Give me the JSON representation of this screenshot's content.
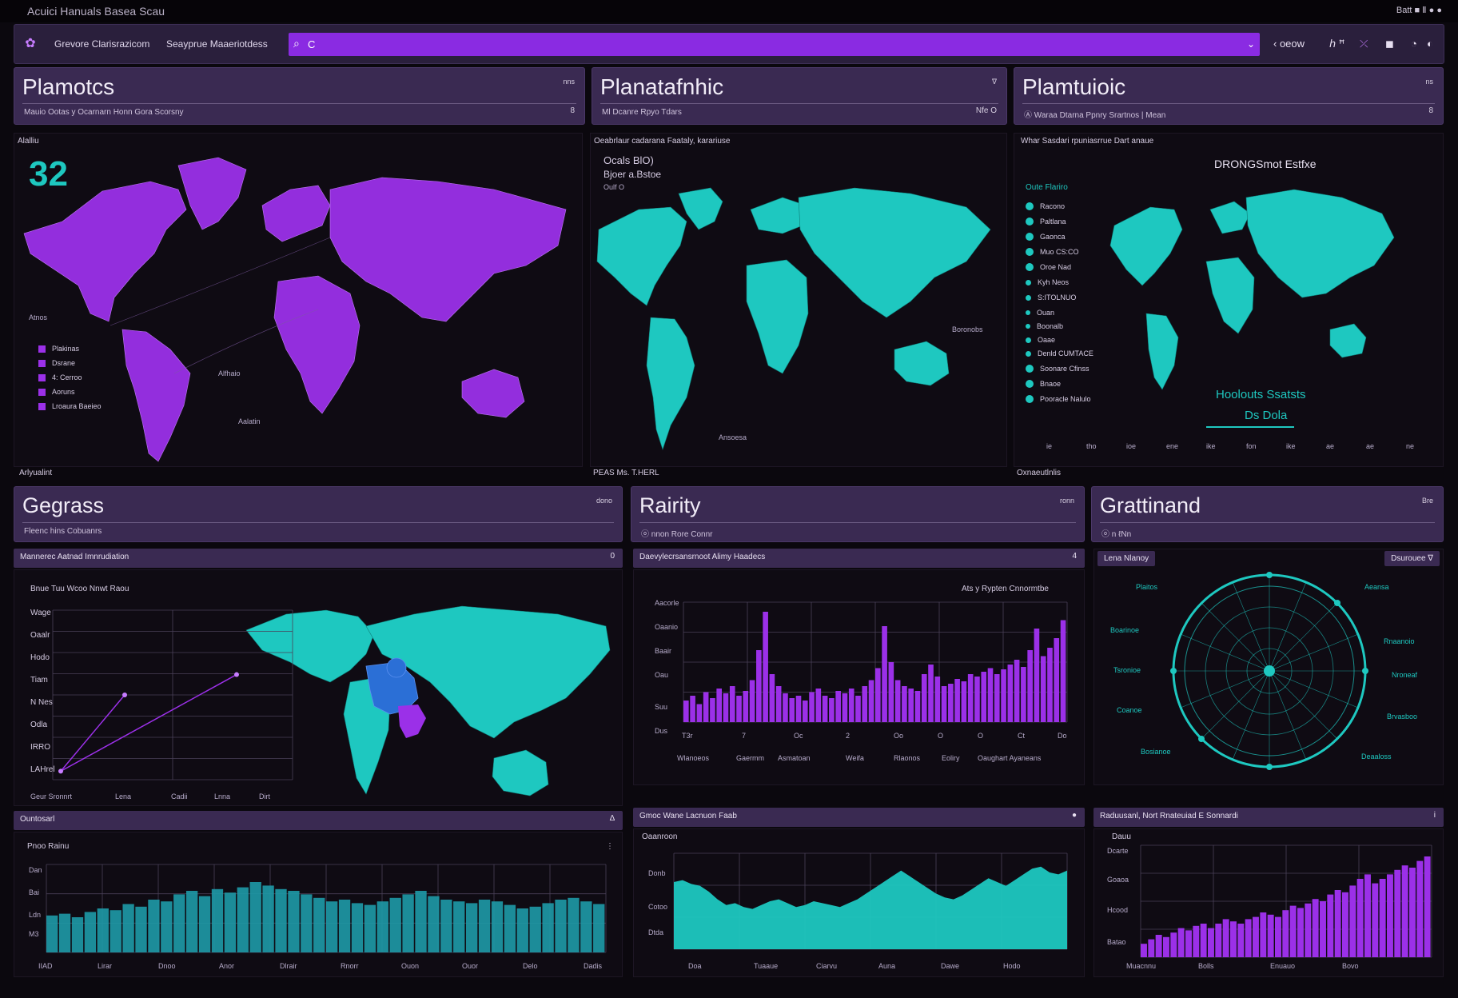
{
  "os": {
    "title": "Acuici Hanuals Basea Scau",
    "tray": "Batt ■ Ⅱ ● ●"
  },
  "app_bar": {
    "app_name": "Grevore Clarisrazicom",
    "app_sub": "Seayprue Maaeriotdess",
    "search_value": "C",
    "actions": [
      "‹ oeow",
      "ℎ ꟸ",
      "⤫",
      "◼",
      "◔",
      "◐"
    ]
  },
  "panels": {
    "p1": {
      "title": "Plamotcs",
      "sub": "Mauio Ootas y Ocarnarn Honn Gora Scorsny",
      "corner": "nns",
      "corner2": "8",
      "caption": "Alalliu",
      "kpi": "32",
      "legend": [
        "Plakinas",
        "Dsrane",
        "4: Cerroo",
        "Aoruns",
        "Lroaura Baeieo"
      ],
      "notes": [
        "Atnos",
        "Alfhaio",
        "Aalatin"
      ],
      "foot": "Arlyualint"
    },
    "p2": {
      "title": "Planatafnhic",
      "sub": "Ml Dcanre Rpyo Tdars",
      "corner": "∇",
      "corner2": "Nfe O",
      "caption": "Oeabrlaur cadarana Faataly, karariuse",
      "callout1": "Ocals BlO)",
      "callout2": "Bjoer   a.Bstoe",
      "callout3": "Oulf O",
      "notes": [
        "Boronobs",
        "Ansoesa"
      ],
      "foot": "PEAS     Ms. T.HERL"
    },
    "p3": {
      "title": "Plamtuioic",
      "sub": "Ⓐ Waraa Dtarna Ppnry Srartnos | Mean",
      "corner": "ns",
      "corner2": "8",
      "caption": "Whar Sasdari rpuniasrrue Dart anaue",
      "heading": "DRONGSmot Estfxe",
      "list_head": "Oute Flariro",
      "legend": [
        "Racono",
        "Paltlana",
        "Gaonca",
        "Muo CS:CO",
        "Oroe Nad",
        "Kyh Neos",
        "S:ITOLNUO",
        "Ouan",
        "Boonalb",
        "Oaae",
        "Denld CUMTACE",
        "Soonare Cfinss",
        "Bnaoe",
        "Pooracle Nalulo"
      ],
      "bottom1": "Hoolouts Ssatsts",
      "bottom2": "Ds Dola",
      "axis": [
        "ie",
        "tho",
        "ioe",
        "ene",
        "ike",
        "fon",
        "ike",
        "ae",
        "ae",
        "ne"
      ],
      "foot": "Oxnaeutlnlis"
    },
    "p4": {
      "title": "Gegrass",
      "sub": "Fleenc hins Cobuanrs",
      "corner": "dono",
      "sub_bar": "Mannerec Aatnad Imnrudiation",
      "sub_icon": "0",
      "chart_label": "Bnue Tuu Wcoo Nnwt Raou",
      "rows": [
        "Wage",
        "Oaalr",
        "Hodo",
        "Tiam",
        "N Nes",
        "Odla",
        "IRRO",
        "LAHrel"
      ],
      "xaxis": [
        "Geur Sronnrt",
        "Lena",
        "Cadii",
        "Lnna",
        "Dirt"
      ]
    },
    "p5": {
      "title": "Rairity",
      "sub": "ⓞ nnon Rore Connr",
      "corner": "ronn",
      "sub_bar": "Daevylecrsansrnoot Alimy Haadecs",
      "sub_icon": "4",
      "chart_title": "Ats y Rypten Cnnormtbe",
      "yticks": [
        "Aacorle",
        "Oaanio",
        "Baair",
        "Oau",
        "Suu",
        "Dus"
      ],
      "xticks": [
        "T3r",
        "7",
        "Oc",
        "2",
        "Oo",
        "O",
        "O",
        "Ct",
        "Do"
      ],
      "xlabels": [
        "Wlanoeos",
        "Gaermm",
        "Asmatoan",
        "Weifa",
        "Rlaonos",
        "Eoliry",
        "Oaughart Ayaneans"
      ]
    },
    "p6": {
      "title": "Grattinand",
      "sub": "ⓞ n ℓNn",
      "corner": "Bre",
      "tab_left": "Lena Nlanoy",
      "tab_right": "Dsurouee  ∇",
      "labels_left": [
        "Plaitos",
        "Boarinoe",
        "Tsronioe",
        "Coanoe",
        "Bosianoe"
      ],
      "labels_right": [
        "Aeansa",
        "Rnaanoio",
        "Nroneaf",
        "Brvasboo",
        "Deaaloss"
      ]
    },
    "p7": {
      "sub_bar": "Ountosarl",
      "sub_icon": "∆",
      "chart_label": "Pnoo Rainu",
      "side_icon": "⋮",
      "yticks": [
        "Dan",
        "Bai",
        "Ldn",
        "M3"
      ],
      "xaxis": [
        "IIAD",
        "Lirar",
        "Dnoo",
        "Anor",
        "Dlrair",
        "Rnorr",
        "Ouon",
        "Ouor",
        "Delo",
        "Dadis"
      ]
    },
    "p8": {
      "sub_bar": "Gmoc Wane Lacnuon Faab",
      "sub_icon": "●",
      "chart_label": "Oaanroon",
      "yticks": [
        "Donb",
        "Cotoo",
        "Dtda"
      ],
      "xaxis": [
        "Doa",
        "Tuaaue",
        "Ciarvu",
        "Auna",
        "Dawe",
        "Hodo"
      ]
    },
    "p9": {
      "sub_bar": "Raduusanl, Nort Rnateuiad E Sonnardi",
      "sub_icon": "i",
      "chart_label": "Dauu",
      "yticks": [
        "Dcarte",
        "Goaoa",
        "Hcood",
        "Batao"
      ],
      "xaxis": [
        "Muacnnu",
        "Bolls",
        "Enuauo",
        "Bovo"
      ]
    }
  },
  "colors": {
    "purple": "#9b30e8",
    "teal": "#1ec8c0",
    "panel": "#3a2a52",
    "bg": "#0b080e"
  },
  "icons": {
    "logo": "app-logo-icon",
    "search": "search-icon",
    "chevron": "chevron-down-icon"
  },
  "chart_data": [
    {
      "type": "line",
      "title": "",
      "series": [
        {
          "values": [
            0.05,
            0.5
          ]
        },
        {
          "values": [
            0.05,
            0.62
          ]
        }
      ]
    },
    {
      "type": "bar",
      "title": "Ats y Rypten Cnnormtbe",
      "values": [
        18,
        22,
        15,
        25,
        20,
        28,
        24,
        30,
        22,
        26,
        35,
        60,
        92,
        40,
        30,
        24,
        20,
        22,
        18,
        25,
        28,
        22,
        20,
        26,
        24,
        28,
        22,
        30,
        35,
        45,
        80,
        50,
        35,
        30,
        28,
        26,
        40,
        48,
        38,
        30,
        32,
        36,
        34,
        40,
        38,
        42,
        45,
        40,
        44,
        48,
        52,
        46,
        60,
        78,
        55,
        62,
        70,
        85
      ]
    },
    {
      "type": "area",
      "title": "",
      "values": [
        42,
        44,
        40,
        46,
        50,
        48,
        55,
        52,
        60,
        58,
        66,
        70,
        64,
        72,
        68,
        74,
        80,
        76,
        72,
        70,
        66,
        62,
        58,
        60,
        56,
        54,
        58,
        62,
        66,
        70,
        64,
        60,
        58,
        56,
        60,
        58,
        54,
        50,
        52,
        56,
        60,
        62,
        58,
        55
      ]
    },
    {
      "type": "area",
      "title": "",
      "values": [
        70,
        72,
        68,
        66,
        60,
        52,
        46,
        48,
        44,
        42,
        46,
        50,
        52,
        48,
        44,
        46,
        50,
        48,
        46,
        44,
        48,
        52,
        58,
        64,
        70,
        76,
        82,
        76,
        70,
        64,
        58,
        54,
        52,
        56,
        62,
        68,
        74,
        70,
        66,
        72,
        78,
        84,
        86,
        80,
        78,
        82
      ]
    },
    {
      "type": "bar",
      "title": "",
      "values": [
        12,
        16,
        20,
        18,
        22,
        26,
        24,
        28,
        30,
        26,
        30,
        34,
        32,
        30,
        34,
        36,
        40,
        38,
        36,
        42,
        46,
        44,
        48,
        52,
        50,
        56,
        60,
        58,
        64,
        70,
        74,
        66,
        70,
        74,
        78,
        82,
        80,
        86,
        90
      ]
    }
  ]
}
